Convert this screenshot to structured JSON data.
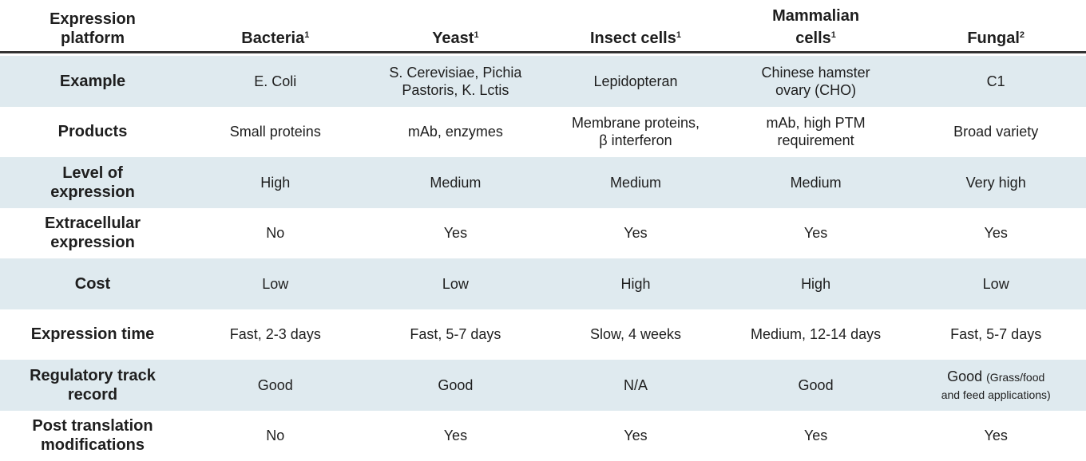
{
  "header": {
    "first": "Expression\nplatform",
    "columns": [
      {
        "label": "Bacteria",
        "note": "1"
      },
      {
        "label": "Yeast",
        "note": "1"
      },
      {
        "label": "Insect cells",
        "note": "1"
      },
      {
        "label": "Mammalian\ncells",
        "note": "1"
      },
      {
        "label": "Fungal",
        "note": "2"
      }
    ]
  },
  "rows": [
    {
      "label": "Example",
      "cells": [
        "E. Coli",
        "S. Cerevisiae, Pichia\nPastoris, K. Lctis",
        "Lepidopteran",
        "Chinese hamster\novary (CHO)",
        "C1"
      ]
    },
    {
      "label": "Products",
      "cells": [
        "Small proteins",
        "mAb, enzymes",
        "Membrane proteins,\nβ interferon",
        "mAb, high PTM\nrequirement",
        "Broad variety"
      ]
    },
    {
      "label": "Level of\nexpression",
      "cells": [
        "High",
        "Medium",
        "Medium",
        "Medium",
        "Very high"
      ]
    },
    {
      "label": "Extracellular\nexpression",
      "cells": [
        "No",
        "Yes",
        "Yes",
        "Yes",
        "Yes"
      ]
    },
    {
      "label": "Cost",
      "cells": [
        "Low",
        "Low",
        "High",
        "High",
        "Low"
      ]
    },
    {
      "label": "Expression time",
      "cells": [
        "Fast, 2-3 days",
        "Fast, 5-7 days",
        "Slow, 4 weeks",
        "Medium, 12-14 days",
        "Fast, 5-7 days"
      ]
    },
    {
      "label": "Regulatory track\nrecord",
      "cells": [
        "Good",
        "Good",
        "N/A",
        "Good",
        {
          "text": "Good",
          "note": "(Grass/food\nand feed applications)"
        }
      ]
    },
    {
      "label": "Post translation\nmodifications",
      "cells": [
        "No",
        "Yes",
        "Yes",
        "Yes",
        "Yes"
      ]
    }
  ]
}
